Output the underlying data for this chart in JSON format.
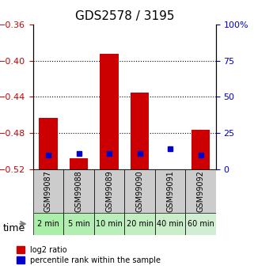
{
  "title": "GDS2578 / 3195",
  "samples": [
    "GSM99087",
    "GSM99088",
    "GSM99089",
    "GSM99090",
    "GSM99091",
    "GSM99092"
  ],
  "timepoints": [
    "2 min",
    "5 min",
    "10 min",
    "20 min",
    "40 min",
    "60 min"
  ],
  "log2_values": [
    -0.463,
    -0.508,
    -0.392,
    -0.435,
    -0.521,
    -0.476
  ],
  "log2_base": -0.521,
  "percentile_values": [
    10,
    11,
    11,
    11,
    14,
    10
  ],
  "left_ylim": [
    -0.52,
    -0.36
  ],
  "left_yticks": [
    -0.52,
    -0.48,
    -0.44,
    -0.4,
    -0.36
  ],
  "right_ylim": [
    0,
    100
  ],
  "right_yticks": [
    0,
    25,
    50,
    75,
    100
  ],
  "right_yticklabels": [
    "0",
    "25",
    "50",
    "75",
    "100%"
  ],
  "bar_color": "#cc0000",
  "percentile_color": "#0000cc",
  "grid_color": "#000000",
  "left_tick_color": "#cc0000",
  "right_tick_color": "#0000cc",
  "bg_color_plot": "#ffffff",
  "bg_color_label_top": "#cccccc",
  "bg_color_label_bottom": "#aaddaa",
  "bar_width": 0.6,
  "legend_red_label": "log2 ratio",
  "legend_blue_label": "percentile rank within the sample",
  "time_label": "time"
}
